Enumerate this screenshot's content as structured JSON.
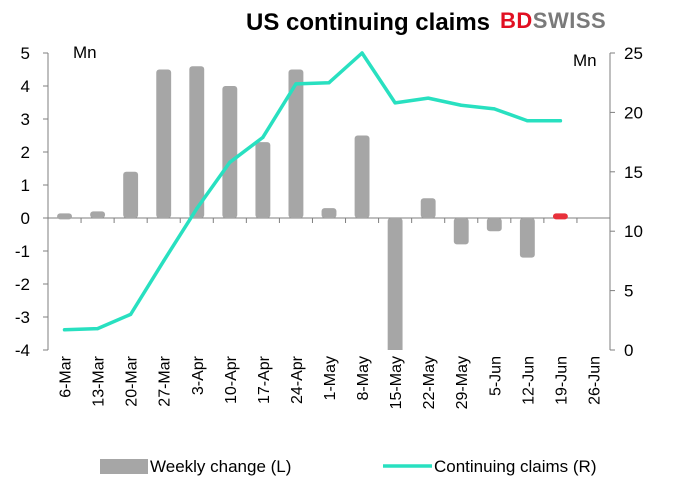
{
  "chart_data": {
    "type": "bar+line",
    "title": "US continuing claims",
    "brand": {
      "part1": "BD",
      "part2": "SWISS",
      "colors": {
        "part1": "#e10f21",
        "part2": "#7a7a7a"
      }
    },
    "left_axis": {
      "unit": "Mn",
      "min": -4,
      "max": 5,
      "ticks": [
        -4,
        -3,
        -2,
        -1,
        0,
        1,
        2,
        3,
        4,
        5
      ]
    },
    "right_axis": {
      "unit": "Mn",
      "min": 0,
      "max": 25,
      "ticks": [
        0,
        5,
        10,
        15,
        20,
        25
      ]
    },
    "categories": [
      "6-Mar",
      "13-Mar",
      "20-Mar",
      "27-Mar",
      "3-Apr",
      "10-Apr",
      "17-Apr",
      "24-Apr",
      "1-May",
      "8-May",
      "15-May",
      "22-May",
      "29-May",
      "5-Jun",
      "12-Jun",
      "19-Jun",
      "26-Jun"
    ],
    "series": [
      {
        "name": "Weekly change (L)",
        "type": "bar",
        "axis": "left",
        "color": "#a6a6a6",
        "highlight_color": "#e8303a",
        "values": [
          0.1,
          0.2,
          1.4,
          4.5,
          4.6,
          4.0,
          2.3,
          4.5,
          0.3,
          2.5,
          -4.2,
          0.6,
          -0.8,
          -0.4,
          -1.2,
          0.1,
          null
        ]
      },
      {
        "name": "Continuing claims (R)",
        "type": "line",
        "axis": "right",
        "color": "#28e0c0",
        "values": [
          1.7,
          1.8,
          3.0,
          7.5,
          11.9,
          15.8,
          17.9,
          22.4,
          22.5,
          25.0,
          20.8,
          21.2,
          20.6,
          20.3,
          19.3,
          19.3,
          null
        ]
      }
    ],
    "legend_position": "bottom",
    "grid": false
  }
}
